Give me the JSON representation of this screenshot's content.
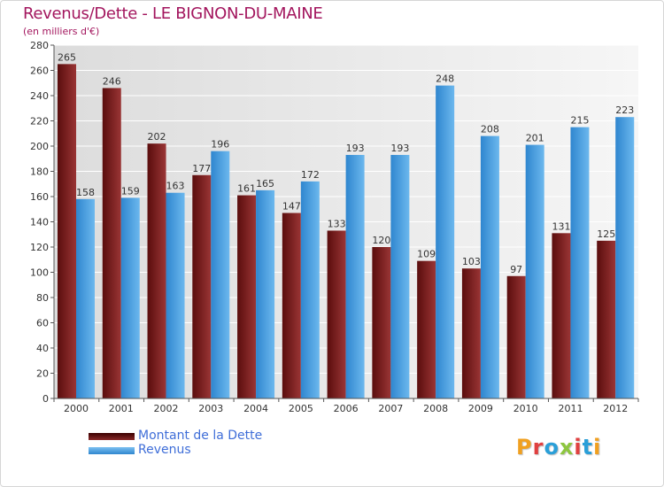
{
  "title": "Revenus/Dette - LE BIGNON-DU-MAINE",
  "subtitle": "(en milliers d'€)",
  "legend": [
    {
      "label": "Montant de la Dette",
      "color": "#7a1a1a"
    },
    {
      "label": "Revenus",
      "color": "#4da3e4"
    }
  ],
  "logo": {
    "text": "Proxiti",
    "letter_colors": [
      "#f0a020",
      "#e04040",
      "#2a9fd8",
      "#8dc63f",
      "#e04040",
      "#2a9fd8",
      "#f0a020"
    ]
  },
  "chart_data": {
    "type": "bar",
    "title": "Revenus/Dette - LE BIGNON-DU-MAINE",
    "subtitle": "(en milliers d'€)",
    "xlabel": "",
    "ylabel": "",
    "categories": [
      "2000",
      "2001",
      "2002",
      "2003",
      "2004",
      "2005",
      "2006",
      "2007",
      "2008",
      "2009",
      "2010",
      "2011",
      "2012"
    ],
    "series": [
      {
        "name": "Montant de la Dette",
        "color": "#7a1a1a",
        "values": [
          265,
          246,
          202,
          177,
          161,
          147,
          133,
          120,
          109,
          103,
          97,
          131,
          125
        ]
      },
      {
        "name": "Revenus",
        "color": "#4da3e4",
        "values": [
          158,
          159,
          163,
          196,
          165,
          172,
          193,
          193,
          248,
          208,
          201,
          215,
          223
        ]
      }
    ],
    "ylim": [
      0,
      280
    ],
    "yticks": [
      0,
      20,
      40,
      60,
      80,
      100,
      120,
      140,
      160,
      180,
      200,
      220,
      240,
      260,
      280
    ],
    "grid": true,
    "legend_position": "bottom-left"
  }
}
